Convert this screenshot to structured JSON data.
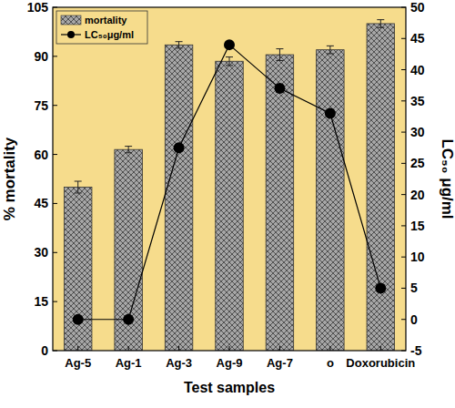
{
  "chart_data": {
    "type": "bar",
    "categories": [
      "Ag-5",
      "Ag-1",
      "Ag-3",
      "Ag-9",
      "Ag-7",
      "o",
      "Doxorubicin"
    ],
    "series": [
      {
        "name": "mortality",
        "type": "bar",
        "color": "#a6a6a6",
        "values": [
          50,
          61.5,
          93.5,
          88.5,
          90.5,
          92,
          100
        ],
        "errors": [
          1.8,
          1,
          1,
          1.3,
          1.8,
          1.2,
          1.2
        ]
      },
      {
        "name": "LC₅₀μg/ml",
        "type": "line",
        "axis": "y2",
        "color": "#000000",
        "marker": "circle",
        "values": [
          0,
          0,
          27.5,
          44,
          37,
          33,
          5
        ]
      }
    ],
    "xlabel": "Test samples",
    "ylabel": "% mortality",
    "y2label": "LC₅₀ μg/ml",
    "ylim": [
      0,
      105
    ],
    "yticks": [
      0,
      15,
      30,
      45,
      60,
      75,
      90,
      105
    ],
    "y2lim": [
      -5,
      50
    ],
    "y2ticks": [
      -5,
      0,
      5,
      10,
      15,
      20,
      25,
      30,
      35,
      40,
      45,
      50
    ],
    "legend": "upper left"
  }
}
